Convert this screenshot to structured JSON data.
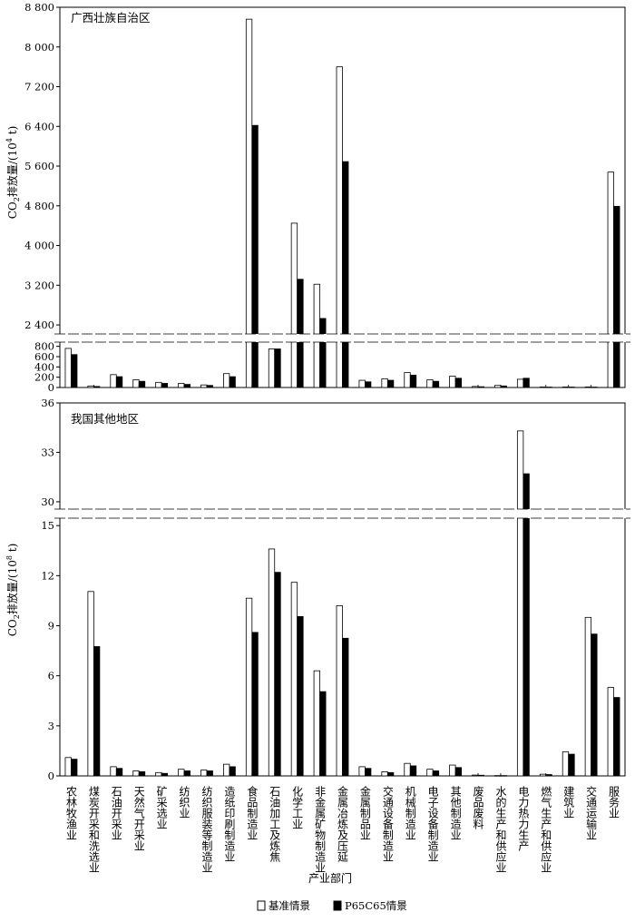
{
  "chart_data": {
    "type": "bar",
    "categories": [
      "农林牧渔业",
      "煤炭开采和洗选业",
      "石油开采业",
      "天然气开采业",
      "矿采选业",
      "纺织业",
      "纺织服装等制造业",
      "造纸印刷制造业",
      "食品制造业",
      "石油加工及炼焦",
      "化学工业",
      "非金属矿物制造业",
      "金属冶炼及压延",
      "金属制品业",
      "交通设备制造业",
      "机械制造业",
      "电子设备制造业",
      "其他制造业",
      "废品废料",
      "水的生产和供应业",
      "电力热力生产",
      "燃气生产和供应业",
      "建筑业",
      "交通运输业",
      "服务业"
    ],
    "xlabel": "产业部门",
    "legend": [
      {
        "label": "基准情景",
        "color": "#ffffff"
      },
      {
        "label": "P65C65情景",
        "color": "#000000"
      }
    ],
    "panels": [
      {
        "title": "广西壮族自治区",
        "ylabel_main": "CO",
        "ylabel_sub": "2",
        "ylabel_rest": "排放量/(10",
        "ylabel_sup": "4",
        "ylabel_end": " t)",
        "upper_ylim": [
          2200,
          8800
        ],
        "upper_ticks": [
          2400,
          3200,
          4000,
          4800,
          5600,
          6400,
          7200,
          8000,
          8800
        ],
        "upper_tick_labels": [
          "2 400",
          "3 200",
          "4 000",
          "4 800",
          "5 600",
          "6 400",
          "7 200",
          "8 000",
          "8 800"
        ],
        "lower_ylim": [
          0,
          900
        ],
        "lower_ticks": [
          0,
          200,
          400,
          600,
          800
        ],
        "lower_tick_labels": [
          "0",
          "200",
          "400",
          "600",
          "800"
        ],
        "series": [
          {
            "name": "基准情景",
            "values": [
              760,
              30,
              250,
              150,
              100,
              80,
              50,
              270,
              8560,
              750,
              4450,
              3220,
              7600,
              140,
              170,
              290,
              150,
              220,
              20,
              40,
              160,
              10,
              10,
              10,
              5480
            ]
          },
          {
            "name": "P65C65情景",
            "values": [
              640,
              20,
              210,
              120,
              80,
              60,
              40,
              210,
              6420,
              750,
              3320,
              2530,
              5690,
              110,
              140,
              240,
              120,
              180,
              15,
              30,
              180,
              8,
              8,
              8,
              4790
            ]
          }
        ]
      },
      {
        "title": "我国其他地区",
        "ylabel_main": "CO",
        "ylabel_sub": "2",
        "ylabel_rest": "排放量/(10",
        "ylabel_sup": "8",
        "ylabel_end": " t)",
        "upper_ylim": [
          29.5,
          36
        ],
        "upper_ticks": [
          30,
          33,
          36
        ],
        "upper_tick_labels": [
          "30",
          "33",
          "36"
        ],
        "lower_ylim": [
          0,
          15.5
        ],
        "lower_ticks": [
          0,
          3,
          6,
          9,
          12,
          15
        ],
        "lower_tick_labels": [
          "0",
          "3",
          "6",
          "9",
          "12",
          "15"
        ],
        "series": [
          {
            "name": "基准情景",
            "values": [
              1.1,
              11.05,
              0.55,
              0.3,
              0.2,
              0.4,
              0.35,
              0.7,
              10.65,
              13.6,
              11.6,
              6.3,
              10.2,
              0.55,
              0.25,
              0.75,
              0.4,
              0.65,
              0.05,
              0.02,
              34.3,
              0.1,
              1.45,
              9.5,
              5.3
            ]
          },
          {
            "name": "P65C65情景",
            "values": [
              1.0,
              7.75,
              0.45,
              0.25,
              0.15,
              0.3,
              0.3,
              0.55,
              8.6,
              12.2,
              9.55,
              5.05,
              8.25,
              0.45,
              0.2,
              0.6,
              0.3,
              0.5,
              0.04,
              0.02,
              31.7,
              0.08,
              1.3,
              8.5,
              4.7
            ]
          }
        ]
      }
    ]
  }
}
